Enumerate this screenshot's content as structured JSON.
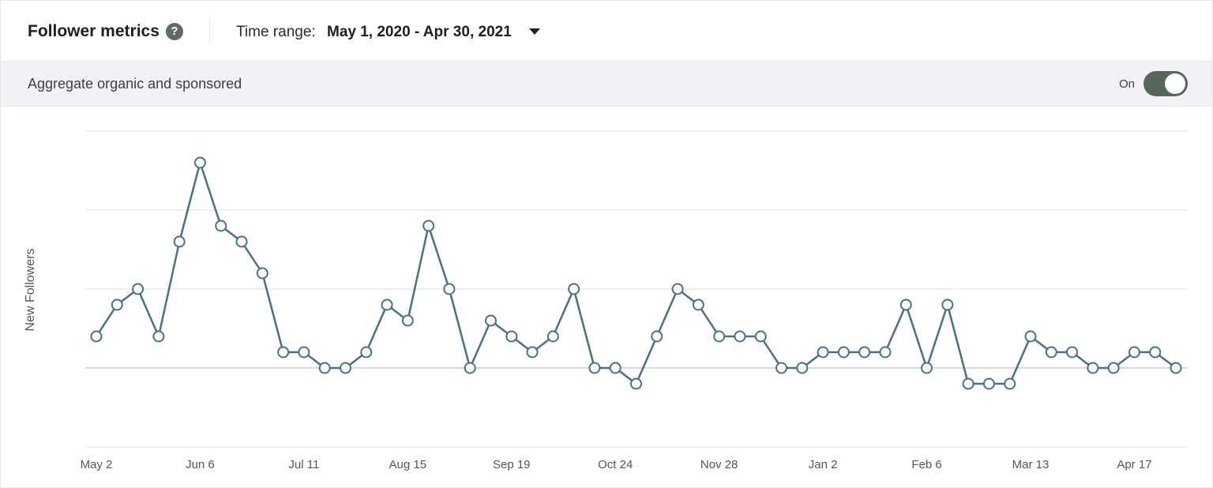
{
  "header": {
    "title": "Follower metrics",
    "help_icon": "question-circle-icon",
    "time_range_label": "Time range:",
    "time_range_value": "May 1, 2020 - Apr 30, 2021",
    "dropdown_icon": "caret-down-icon"
  },
  "band": {
    "label": "Aggregate organic and sponsored",
    "toggle_label": "On",
    "toggle_on": true
  },
  "colors": {
    "line": "#4a7180",
    "grid": "#e2e2e6",
    "toggle": "#56675f",
    "band_bg": "#f3f3f7"
  },
  "chart_data": {
    "type": "line",
    "ylabel": "New Followers",
    "xlabel": "",
    "ylim": [
      -5,
      15
    ],
    "grid": true,
    "x_tick_labels": [
      "May 2",
      "Jun 6",
      "Jul 11",
      "Aug 15",
      "Sep 19",
      "Oct 24",
      "Nov 28",
      "Jan 2",
      "Feb 6",
      "Mar 13",
      "Apr 17"
    ],
    "x_tick_start_index": 0,
    "x_tick_step": 5,
    "series": [
      {
        "values": [
          2,
          4,
          5,
          2,
          8,
          13,
          9,
          8,
          6,
          1,
          1,
          0,
          0,
          1,
          4,
          3,
          9,
          5,
          0,
          3,
          2,
          1,
          2,
          5,
          0,
          0,
          -1,
          2,
          5,
          4,
          2,
          2,
          2,
          0,
          0,
          1,
          1,
          1,
          1,
          4,
          0,
          4,
          -1,
          -1,
          -1,
          2,
          1,
          1,
          0,
          0,
          1,
          1,
          0
        ]
      }
    ]
  }
}
